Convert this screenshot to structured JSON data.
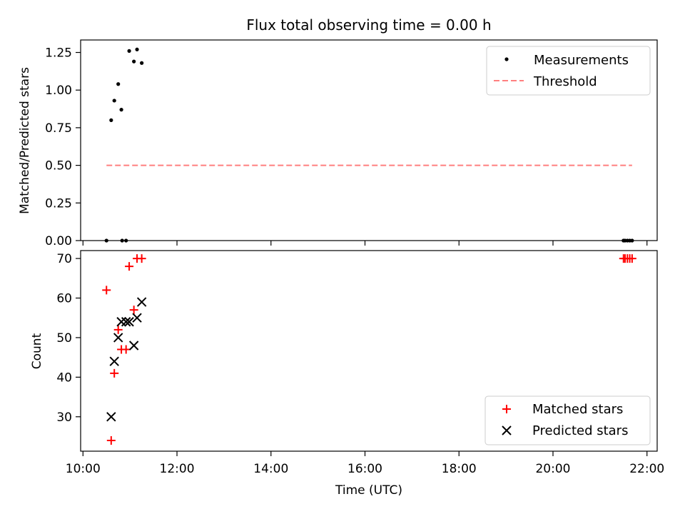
{
  "chart_data": [
    {
      "type": "scatter",
      "title": "Flux total observing time = 0.00 h",
      "xlabel": "",
      "ylabel": "Matched/Predicted stars",
      "ylim": [
        0,
        1.333
      ],
      "xlim": [
        "09:57",
        "22:13"
      ],
      "yticks": [
        0.0,
        0.25,
        0.5,
        0.75,
        1.0,
        1.25
      ],
      "ytick_labels": [
        "0.00",
        "0.25",
        "0.50",
        "0.75",
        "1.00",
        "1.25"
      ],
      "legend": [
        "Measurements",
        "Threshold"
      ],
      "legend_position": "top-right",
      "grid": false,
      "series": [
        {
          "name": "Measurements",
          "marker": "dot",
          "color": "#000000",
          "points": [
            {
              "x": "10:50",
              "y": 0.0
            },
            {
              "x": "10:36",
              "y": 0.8
            },
            {
              "x": "10:40",
              "y": 0.93
            },
            {
              "x": "10:45",
              "y": 1.04
            },
            {
              "x": "10:49",
              "y": 0.87
            },
            {
              "x": "10:55",
              "y": 0.0
            },
            {
              "x": "10:59",
              "y": 1.26
            },
            {
              "x": "11:05",
              "y": 1.19
            },
            {
              "x": "11:09",
              "y": 1.27
            },
            {
              "x": "11:15",
              "y": 1.18
            },
            {
              "x": "21:30",
              "y": 0.0
            },
            {
              "x": "21:32",
              "y": 0.0
            },
            {
              "x": "21:35",
              "y": 0.0
            },
            {
              "x": "21:38",
              "y": 0.0
            },
            {
              "x": "21:41",
              "y": 0.0
            },
            {
              "x": "10:30",
              "y": 0.0
            }
          ]
        },
        {
          "name": "Threshold",
          "marker": "dashed-line",
          "color": "#ff7f7f",
          "points": [
            {
              "x": "10:30",
              "y": 0.5
            },
            {
              "x": "21:41",
              "y": 0.5
            }
          ]
        }
      ]
    },
    {
      "type": "scatter",
      "title": "",
      "xlabel": "Time (UTC)",
      "ylabel": "Count",
      "ylim": [
        21.3,
        72.0
      ],
      "xlim": [
        "09:57",
        "22:13"
      ],
      "yticks": [
        30,
        40,
        50,
        60,
        70
      ],
      "xticks": [
        "10:00",
        "12:00",
        "14:00",
        "16:00",
        "18:00",
        "20:00",
        "22:00"
      ],
      "legend": [
        "Matched stars",
        "Predicted stars"
      ],
      "legend_position": "bottom-right",
      "grid": false,
      "series": [
        {
          "name": "Matched stars",
          "marker": "plus",
          "color": "#ff0000",
          "points": [
            {
              "x": "10:30",
              "y": 62
            },
            {
              "x": "10:36",
              "y": 24
            },
            {
              "x": "10:40",
              "y": 41
            },
            {
              "x": "10:45",
              "y": 52
            },
            {
              "x": "10:49",
              "y": 47
            },
            {
              "x": "10:55",
              "y": 47
            },
            {
              "x": "10:59",
              "y": 68
            },
            {
              "x": "11:05",
              "y": 57
            },
            {
              "x": "11:09",
              "y": 70
            },
            {
              "x": "11:15",
              "y": 70
            },
            {
              "x": "21:30",
              "y": 70
            },
            {
              "x": "21:32",
              "y": 70
            },
            {
              "x": "21:35",
              "y": 70
            },
            {
              "x": "21:38",
              "y": 70
            },
            {
              "x": "21:41",
              "y": 70
            }
          ]
        },
        {
          "name": "Predicted stars",
          "marker": "x",
          "color": "#000000",
          "points": [
            {
              "x": "10:36",
              "y": 30
            },
            {
              "x": "10:40",
              "y": 44
            },
            {
              "x": "10:45",
              "y": 50
            },
            {
              "x": "10:49",
              "y": 54
            },
            {
              "x": "10:55",
              "y": 54
            },
            {
              "x": "10:59",
              "y": 54
            },
            {
              "x": "11:05",
              "y": 48
            },
            {
              "x": "11:09",
              "y": 55
            },
            {
              "x": "11:15",
              "y": 59
            }
          ]
        }
      ]
    }
  ]
}
